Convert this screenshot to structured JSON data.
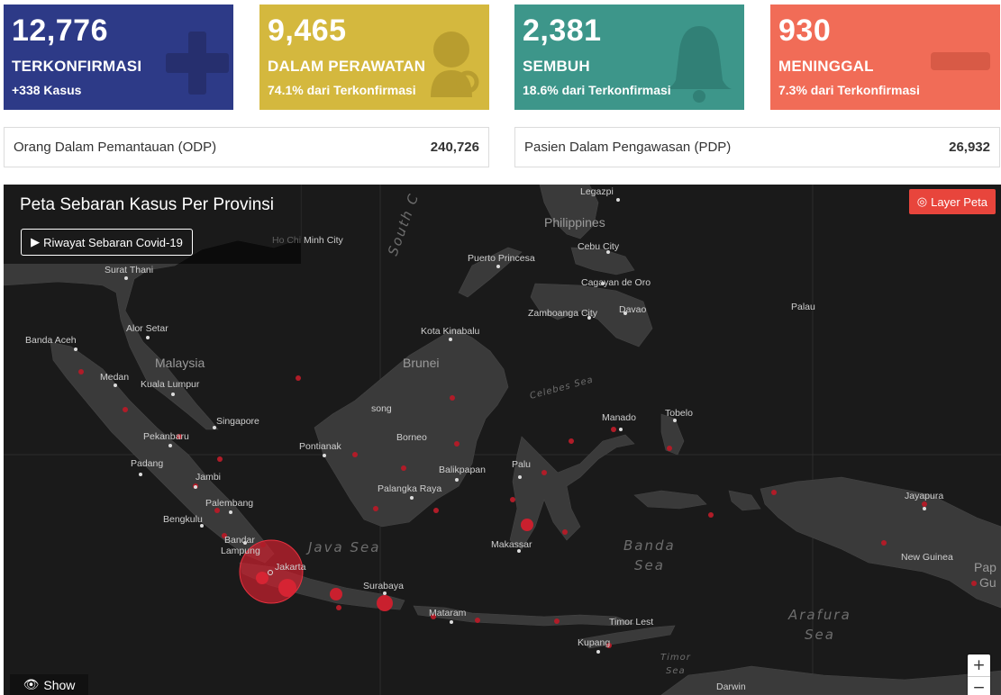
{
  "stats": {
    "confirmed": {
      "value": "12,776",
      "label": "TERKONFIRMASI",
      "sub": "+338 Kasus",
      "color": "#2d3a87",
      "icon": "plus-icon"
    },
    "treated": {
      "value": "9,465",
      "label": "DALAM PERAWATAN",
      "sub": "74.1% dari Terkonfirmasi",
      "color": "#d4b83e",
      "icon": "patient-icon"
    },
    "recovered": {
      "value": "2,381",
      "label": "SEMBUH",
      "sub": "18.6% dari Terkonfirmasi",
      "color": "#3d968a",
      "icon": "bell-icon"
    },
    "deaths": {
      "value": "930",
      "label": "MENINGGAL",
      "sub": "7.3% dari Terkonfirmasi",
      "color": "#f16c57",
      "icon": "bar-icon"
    }
  },
  "info": {
    "odp": {
      "label": "Orang Dalam Pemantauan (ODP)",
      "value": "240,726"
    },
    "pdp": {
      "label": "Pasien Dalam Pengawasan (PDP)",
      "value": "26,932"
    }
  },
  "map": {
    "title": "Peta Sebaran Kasus Per Provinsi",
    "history_button": "Riwayat Sebaran Covid-19",
    "layer_button": "Layer Peta",
    "show_button": "Show",
    "zoom_in": "+",
    "zoom_out": "−",
    "places": {
      "legazpi": "Legazpi",
      "philippines": "Philippines",
      "ho_chi_minh": "Ho Chi Minh City",
      "surat_thani": "Surat Thani",
      "puerto_princesa": "Puerto Princesa",
      "cebu": "Cebu City",
      "cagayan": "Cagayan de Oro",
      "zamboanga": "Zamboanga City",
      "davao": "Davao",
      "palau": "Palau",
      "alor_setar": "Alor Setar",
      "banda_aceh": "Banda Aceh",
      "kota_kinabalu": "Kota Kinabalu",
      "malaysia": "Malaysia",
      "brunei": "Brunei",
      "medan": "Medan",
      "kuala_lumpur": "Kuala Lumpur",
      "celebes_sea": "Celebes Sea",
      "singapore": "Singapore",
      "song": "song",
      "manado": "Manado",
      "tobelo": "Tobelo",
      "pekanbaru": "Pekanbaru",
      "pontianak": "Pontianak",
      "borneo": "Borneo",
      "padang": "Padang",
      "balikpapan": "Balikpapan",
      "palu": "Palu",
      "jambi": "Jambi",
      "palangka_raya": "Palangka Raya",
      "jayapura": "Jayapura",
      "palembang": "Palembang",
      "bengkulu": "Bengkulu",
      "bandar_lampung_1": "Bandar",
      "bandar_lampung_2": "Lampung",
      "java_sea": "Java Sea",
      "makassar": "Makassar",
      "banda_sea_1": "Banda",
      "banda_sea_2": "Sea",
      "new_guinea": "New Guinea",
      "jakarta": "Jakarta",
      "surabaya": "Surabaya",
      "mataram": "Mataram",
      "timor_leste": "Timor Lest",
      "arafura_1": "Arafura",
      "arafura_2": "Sea",
      "kupang": "Kupang",
      "timor_sea_1": "Timor",
      "timor_sea_2": "Sea",
      "darwin": "Darwin",
      "papua_1": "Pap",
      "papua_2": "Gu",
      "south_china_sea": "South C"
    }
  }
}
